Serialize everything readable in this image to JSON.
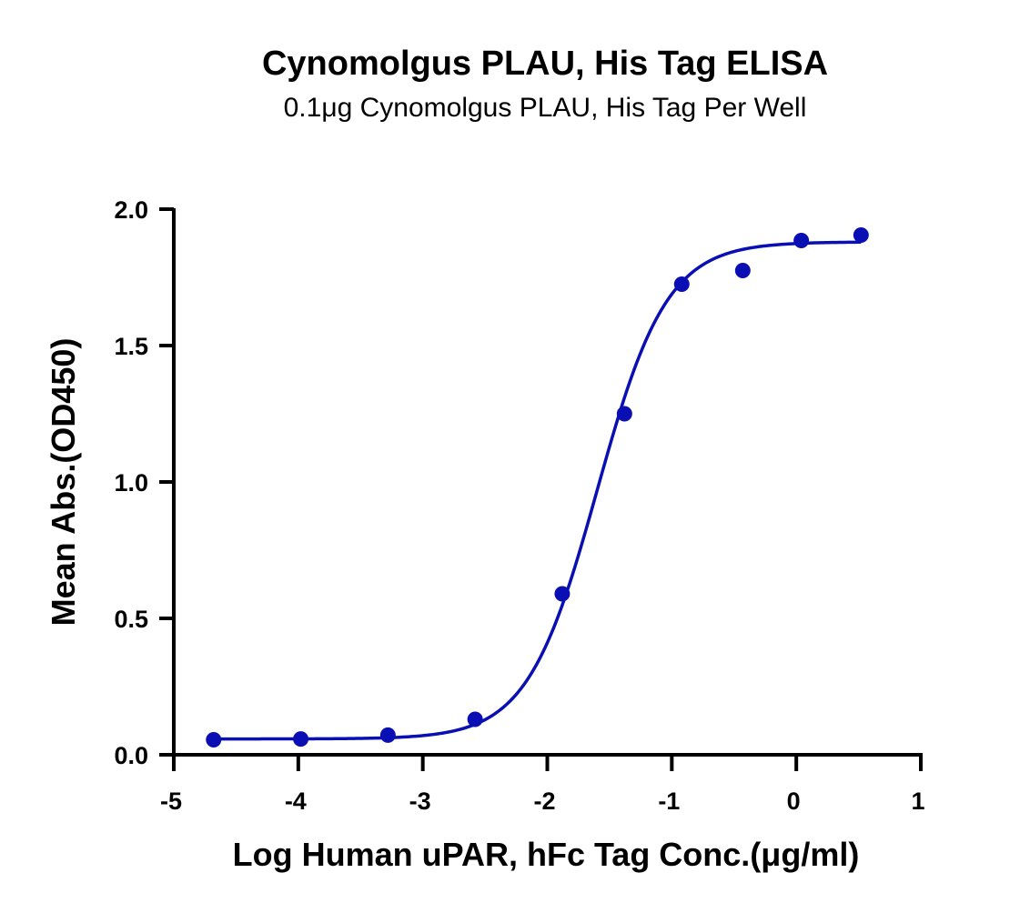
{
  "chart_data": {
    "type": "scatter",
    "title": "Cynomolgus PLAU, His Tag ELISA",
    "subtitle": "0.1μg Cynomolgus PLAU, His Tag Per Well",
    "xlabel": "Log Human uPAR, hFc Tag Conc.(μg/ml)",
    "ylabel": "Mean Abs.(OD450)",
    "xlim": [
      -5,
      1
    ],
    "ylim": [
      0,
      2.0
    ],
    "x_ticks": [
      "-5",
      "-4",
      "-3",
      "-2",
      "-1",
      "0",
      "1"
    ],
    "y_ticks": [
      "0.0",
      "0.5",
      "1.0",
      "1.5",
      "2.0"
    ],
    "grid": false,
    "color": "#0a0fb4",
    "series": [
      {
        "points": [
          {
            "x": -4.68,
            "y": 0.055
          },
          {
            "x": -3.98,
            "y": 0.058
          },
          {
            "x": -3.28,
            "y": 0.072
          },
          {
            "x": -2.58,
            "y": 0.13
          },
          {
            "x": -1.88,
            "y": 0.59
          },
          {
            "x": -1.38,
            "y": 1.25
          },
          {
            "x": -0.92,
            "y": 1.725
          },
          {
            "x": -0.43,
            "y": 1.775
          },
          {
            "x": 0.04,
            "y": 1.885
          },
          {
            "x": 0.52,
            "y": 1.905
          }
        ],
        "fit": {
          "model": "4PL",
          "bottom": 0.058,
          "top": 1.88,
          "logEC50": -1.6,
          "hillslope": 1.55,
          "range": [
            -4.68,
            0.52
          ]
        }
      }
    ]
  }
}
